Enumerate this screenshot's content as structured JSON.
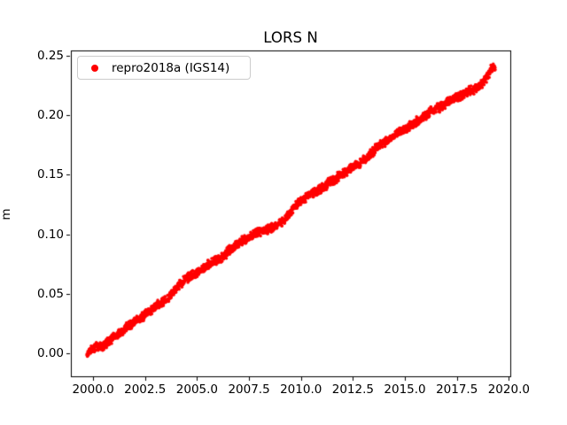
{
  "figure": {
    "background": "#ffffff",
    "axes_edge_color": "#000000",
    "tick_color": "#000000"
  },
  "chart_data": {
    "type": "scatter",
    "title": "LORS N",
    "xlabel": "",
    "ylabel": "m",
    "grid": false,
    "legend_position": "upper left",
    "legend": [
      {
        "label": "repro2018a (IGS14)",
        "color": "#ff0000",
        "marker": "dot"
      }
    ],
    "xlim": [
      1998.93,
      2020.07
    ],
    "ylim": [
      -0.0192,
      0.2543
    ],
    "x_ticks": [
      2000.0,
      2002.5,
      2005.0,
      2007.5,
      2010.0,
      2012.5,
      2015.0,
      2017.5,
      2020.0
    ],
    "x_tick_labels": [
      "2000.0",
      "2002.5",
      "2005.0",
      "2007.5",
      "2010.0",
      "2012.5",
      "2015.0",
      "2017.5",
      "2020.0"
    ],
    "y_ticks": [
      0.0,
      0.05,
      0.1,
      0.15,
      0.2,
      0.25
    ],
    "y_tick_labels": [
      "0.00",
      "0.05",
      "0.10",
      "0.15",
      "0.20",
      "0.25"
    ],
    "series": [
      {
        "name": "repro2018a (IGS14)",
        "color": "#ff0000",
        "marker_size_px": 3.5,
        "points_per_year": 120,
        "scatter_band_halfwidth_m": 0.003,
        "trend_m_per_yr": 0.0122,
        "centerline": [
          [
            1999.7,
            -0.001
          ],
          [
            1999.9,
            0.003
          ],
          [
            2000.1,
            0.006
          ],
          [
            2000.45,
            0.006
          ],
          [
            2000.8,
            0.011
          ],
          [
            2001.2,
            0.016
          ],
          [
            2001.6,
            0.022
          ],
          [
            2002.0,
            0.026
          ],
          [
            2002.35,
            0.031
          ],
          [
            2002.75,
            0.035
          ],
          [
            2003.1,
            0.041
          ],
          [
            2003.5,
            0.044
          ],
          [
            2003.8,
            0.051
          ],
          [
            2004.1,
            0.057
          ],
          [
            2004.5,
            0.063
          ],
          [
            2004.9,
            0.067
          ],
          [
            2005.3,
            0.071
          ],
          [
            2005.65,
            0.076
          ],
          [
            2006.05,
            0.079
          ],
          [
            2006.35,
            0.083
          ],
          [
            2006.7,
            0.089
          ],
          [
            2007.15,
            0.094
          ],
          [
            2007.55,
            0.098
          ],
          [
            2008.0,
            0.102
          ],
          [
            2008.4,
            0.104
          ],
          [
            2008.85,
            0.107
          ],
          [
            2009.2,
            0.112
          ],
          [
            2009.6,
            0.121
          ],
          [
            2010.0,
            0.129
          ],
          [
            2010.4,
            0.133
          ],
          [
            2010.85,
            0.137
          ],
          [
            2011.25,
            0.142
          ],
          [
            2011.7,
            0.147
          ],
          [
            2012.1,
            0.152
          ],
          [
            2012.55,
            0.157
          ],
          [
            2012.95,
            0.161
          ],
          [
            2013.4,
            0.168
          ],
          [
            2013.8,
            0.175
          ],
          [
            2014.25,
            0.18
          ],
          [
            2014.65,
            0.185
          ],
          [
            2015.1,
            0.189
          ],
          [
            2015.5,
            0.194
          ],
          [
            2015.95,
            0.199
          ],
          [
            2016.35,
            0.204
          ],
          [
            2016.8,
            0.208
          ],
          [
            2017.2,
            0.213
          ],
          [
            2017.65,
            0.216
          ],
          [
            2018.05,
            0.22
          ],
          [
            2018.5,
            0.223
          ],
          [
            2018.7,
            0.226
          ],
          [
            2018.9,
            0.231
          ],
          [
            2019.1,
            0.237
          ],
          [
            2019.25,
            0.24
          ],
          [
            2019.35,
            0.241
          ]
        ]
      }
    ]
  }
}
